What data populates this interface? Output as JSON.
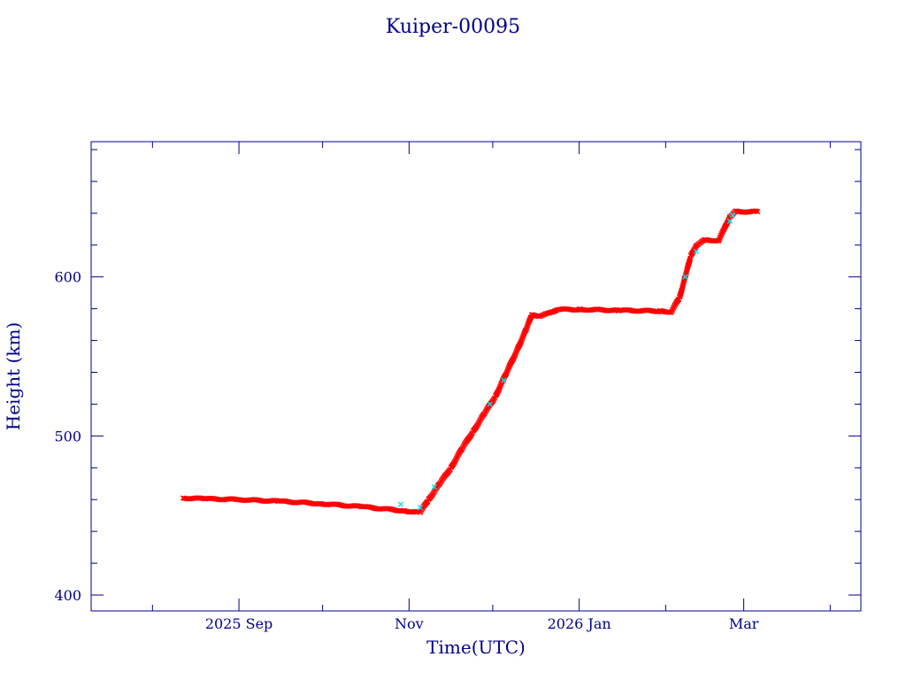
{
  "chart_data": {
    "type": "scatter",
    "title": "Kuiper-00095",
    "xlabel": "Time(UTC)",
    "ylabel": "Height (km)",
    "xlim": [
      "2025-07-10",
      "2026-04-12"
    ],
    "ylim": [
      390,
      685
    ],
    "x_ticks": [
      {
        "date": "2025-09-01",
        "label": "2025 Sep"
      },
      {
        "date": "2025-11-01",
        "label": "Nov"
      },
      {
        "date": "2026-01-01",
        "label": "2026 Jan"
      },
      {
        "date": "2026-03-01",
        "label": "Mar"
      }
    ],
    "y_ticks": [
      400,
      500,
      600
    ],
    "grid": false,
    "legend": "none",
    "colors": {
      "axis": "#00008b",
      "primary_points": "#ff0000",
      "secondary_points": "#00e5ee"
    },
    "series": [
      {
        "marker": "x",
        "color": "#ff0000",
        "points": [
          {
            "x": "2025-08-12",
            "y": 461
          },
          {
            "x": "2025-08-20",
            "y": 460.5
          },
          {
            "x": "2025-09-01",
            "y": 460
          },
          {
            "x": "2025-09-15",
            "y": 459
          },
          {
            "x": "2025-09-30",
            "y": 457.5
          },
          {
            "x": "2025-10-15",
            "y": 455.5
          },
          {
            "x": "2025-10-30",
            "y": 453
          },
          {
            "x": "2025-11-05",
            "y": 452
          },
          {
            "x": "2025-11-08",
            "y": 460
          },
          {
            "x": "2025-11-12",
            "y": 470
          },
          {
            "x": "2025-11-16",
            "y": 480
          },
          {
            "x": "2025-11-20",
            "y": 492
          },
          {
            "x": "2025-11-24",
            "y": 503
          },
          {
            "x": "2025-11-28",
            "y": 514
          },
          {
            "x": "2025-12-02",
            "y": 525
          },
          {
            "x": "2025-12-06",
            "y": 540
          },
          {
            "x": "2025-12-10",
            "y": 555
          },
          {
            "x": "2025-12-13",
            "y": 567
          },
          {
            "x": "2025-12-15",
            "y": 576
          },
          {
            "x": "2025-12-18",
            "y": 575.5
          },
          {
            "x": "2025-12-21",
            "y": 577
          },
          {
            "x": "2025-12-24",
            "y": 579.5
          },
          {
            "x": "2026-01-01",
            "y": 579.5
          },
          {
            "x": "2026-01-15",
            "y": 579
          },
          {
            "x": "2026-01-30",
            "y": 578.5
          },
          {
            "x": "2026-02-03",
            "y": 578
          },
          {
            "x": "2026-02-06",
            "y": 587
          },
          {
            "x": "2026-02-08",
            "y": 600
          },
          {
            "x": "2026-02-10",
            "y": 613
          },
          {
            "x": "2026-02-12",
            "y": 620
          },
          {
            "x": "2026-02-15",
            "y": 623
          },
          {
            "x": "2026-02-20",
            "y": 623
          },
          {
            "x": "2026-02-22",
            "y": 630
          },
          {
            "x": "2026-02-24",
            "y": 638
          },
          {
            "x": "2026-02-26",
            "y": 641
          },
          {
            "x": "2026-03-06",
            "y": 641
          }
        ]
      },
      {
        "marker": "x",
        "color": "#00e5ee",
        "points": [
          {
            "x": "2025-10-29",
            "y": 457
          },
          {
            "x": "2025-11-05",
            "y": 455
          },
          {
            "x": "2025-11-10",
            "y": 468
          },
          {
            "x": "2025-11-30",
            "y": 520
          },
          {
            "x": "2025-12-05",
            "y": 535
          },
          {
            "x": "2026-02-08",
            "y": 600
          },
          {
            "x": "2026-02-12",
            "y": 616
          },
          {
            "x": "2026-02-24",
            "y": 635
          },
          {
            "x": "2026-02-25",
            "y": 639
          }
        ]
      }
    ]
  }
}
